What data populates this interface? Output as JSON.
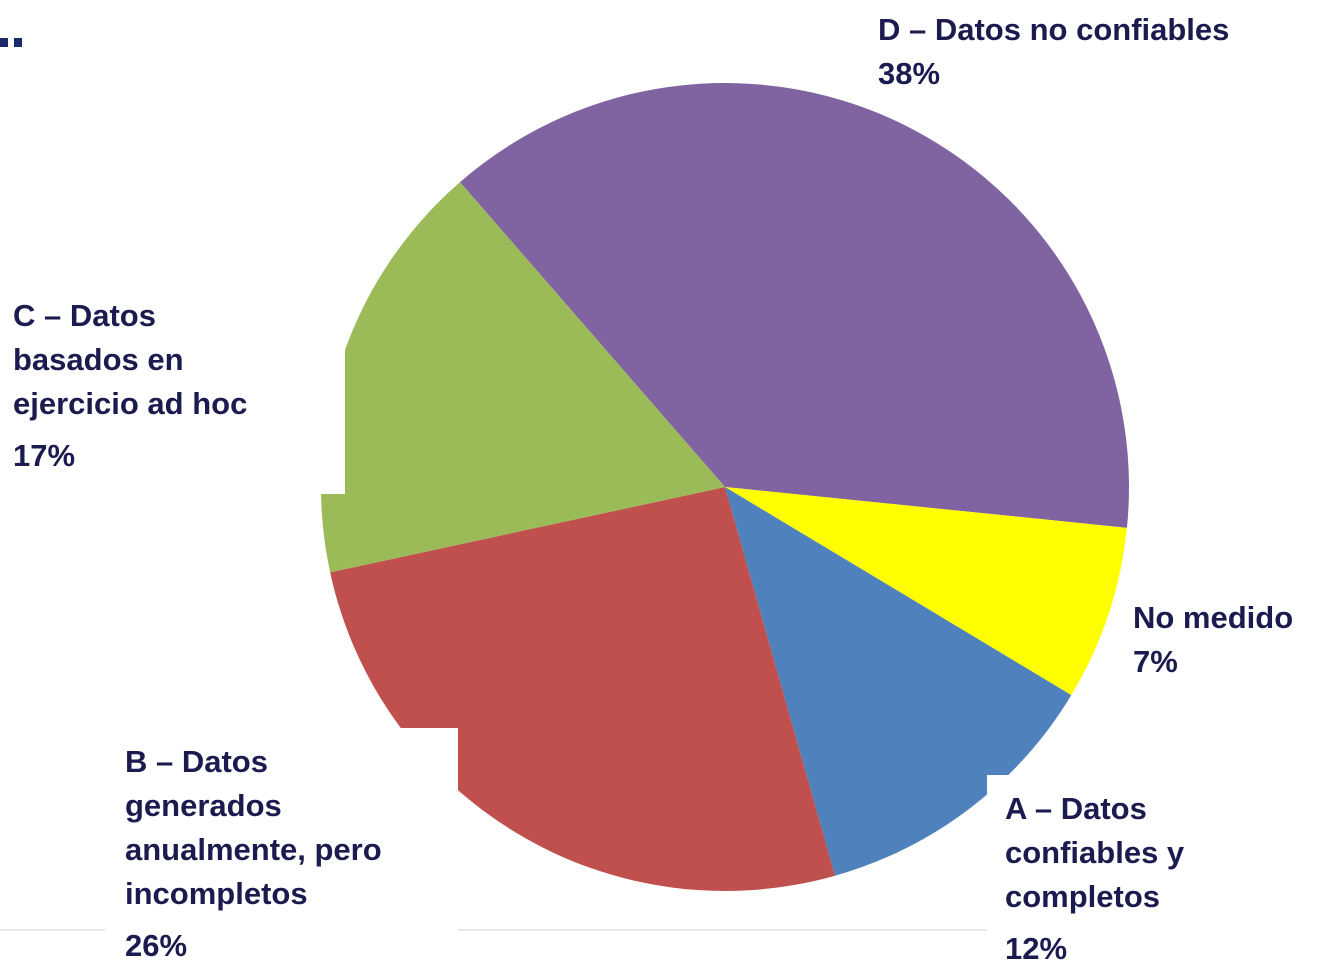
{
  "chart_data": {
    "type": "pie",
    "categories": [
      "D – Datos no confiables",
      "No medido",
      "A – Datos\nconfiables y\ncompletos",
      "B – Datos\ngenerados\nanualmente, pero\nincompletos",
      "C – Datos\nbasados en\nejercicio ad hoc"
    ],
    "values": [
      38,
      7,
      12,
      26,
      17
    ],
    "value_labels": [
      "38%",
      "7%",
      "12%",
      "26%",
      "17%"
    ],
    "colors": [
      "#8064a2",
      "#ffff00",
      "#4f81bd",
      "#c0504d",
      "#9bbb59"
    ]
  }
}
